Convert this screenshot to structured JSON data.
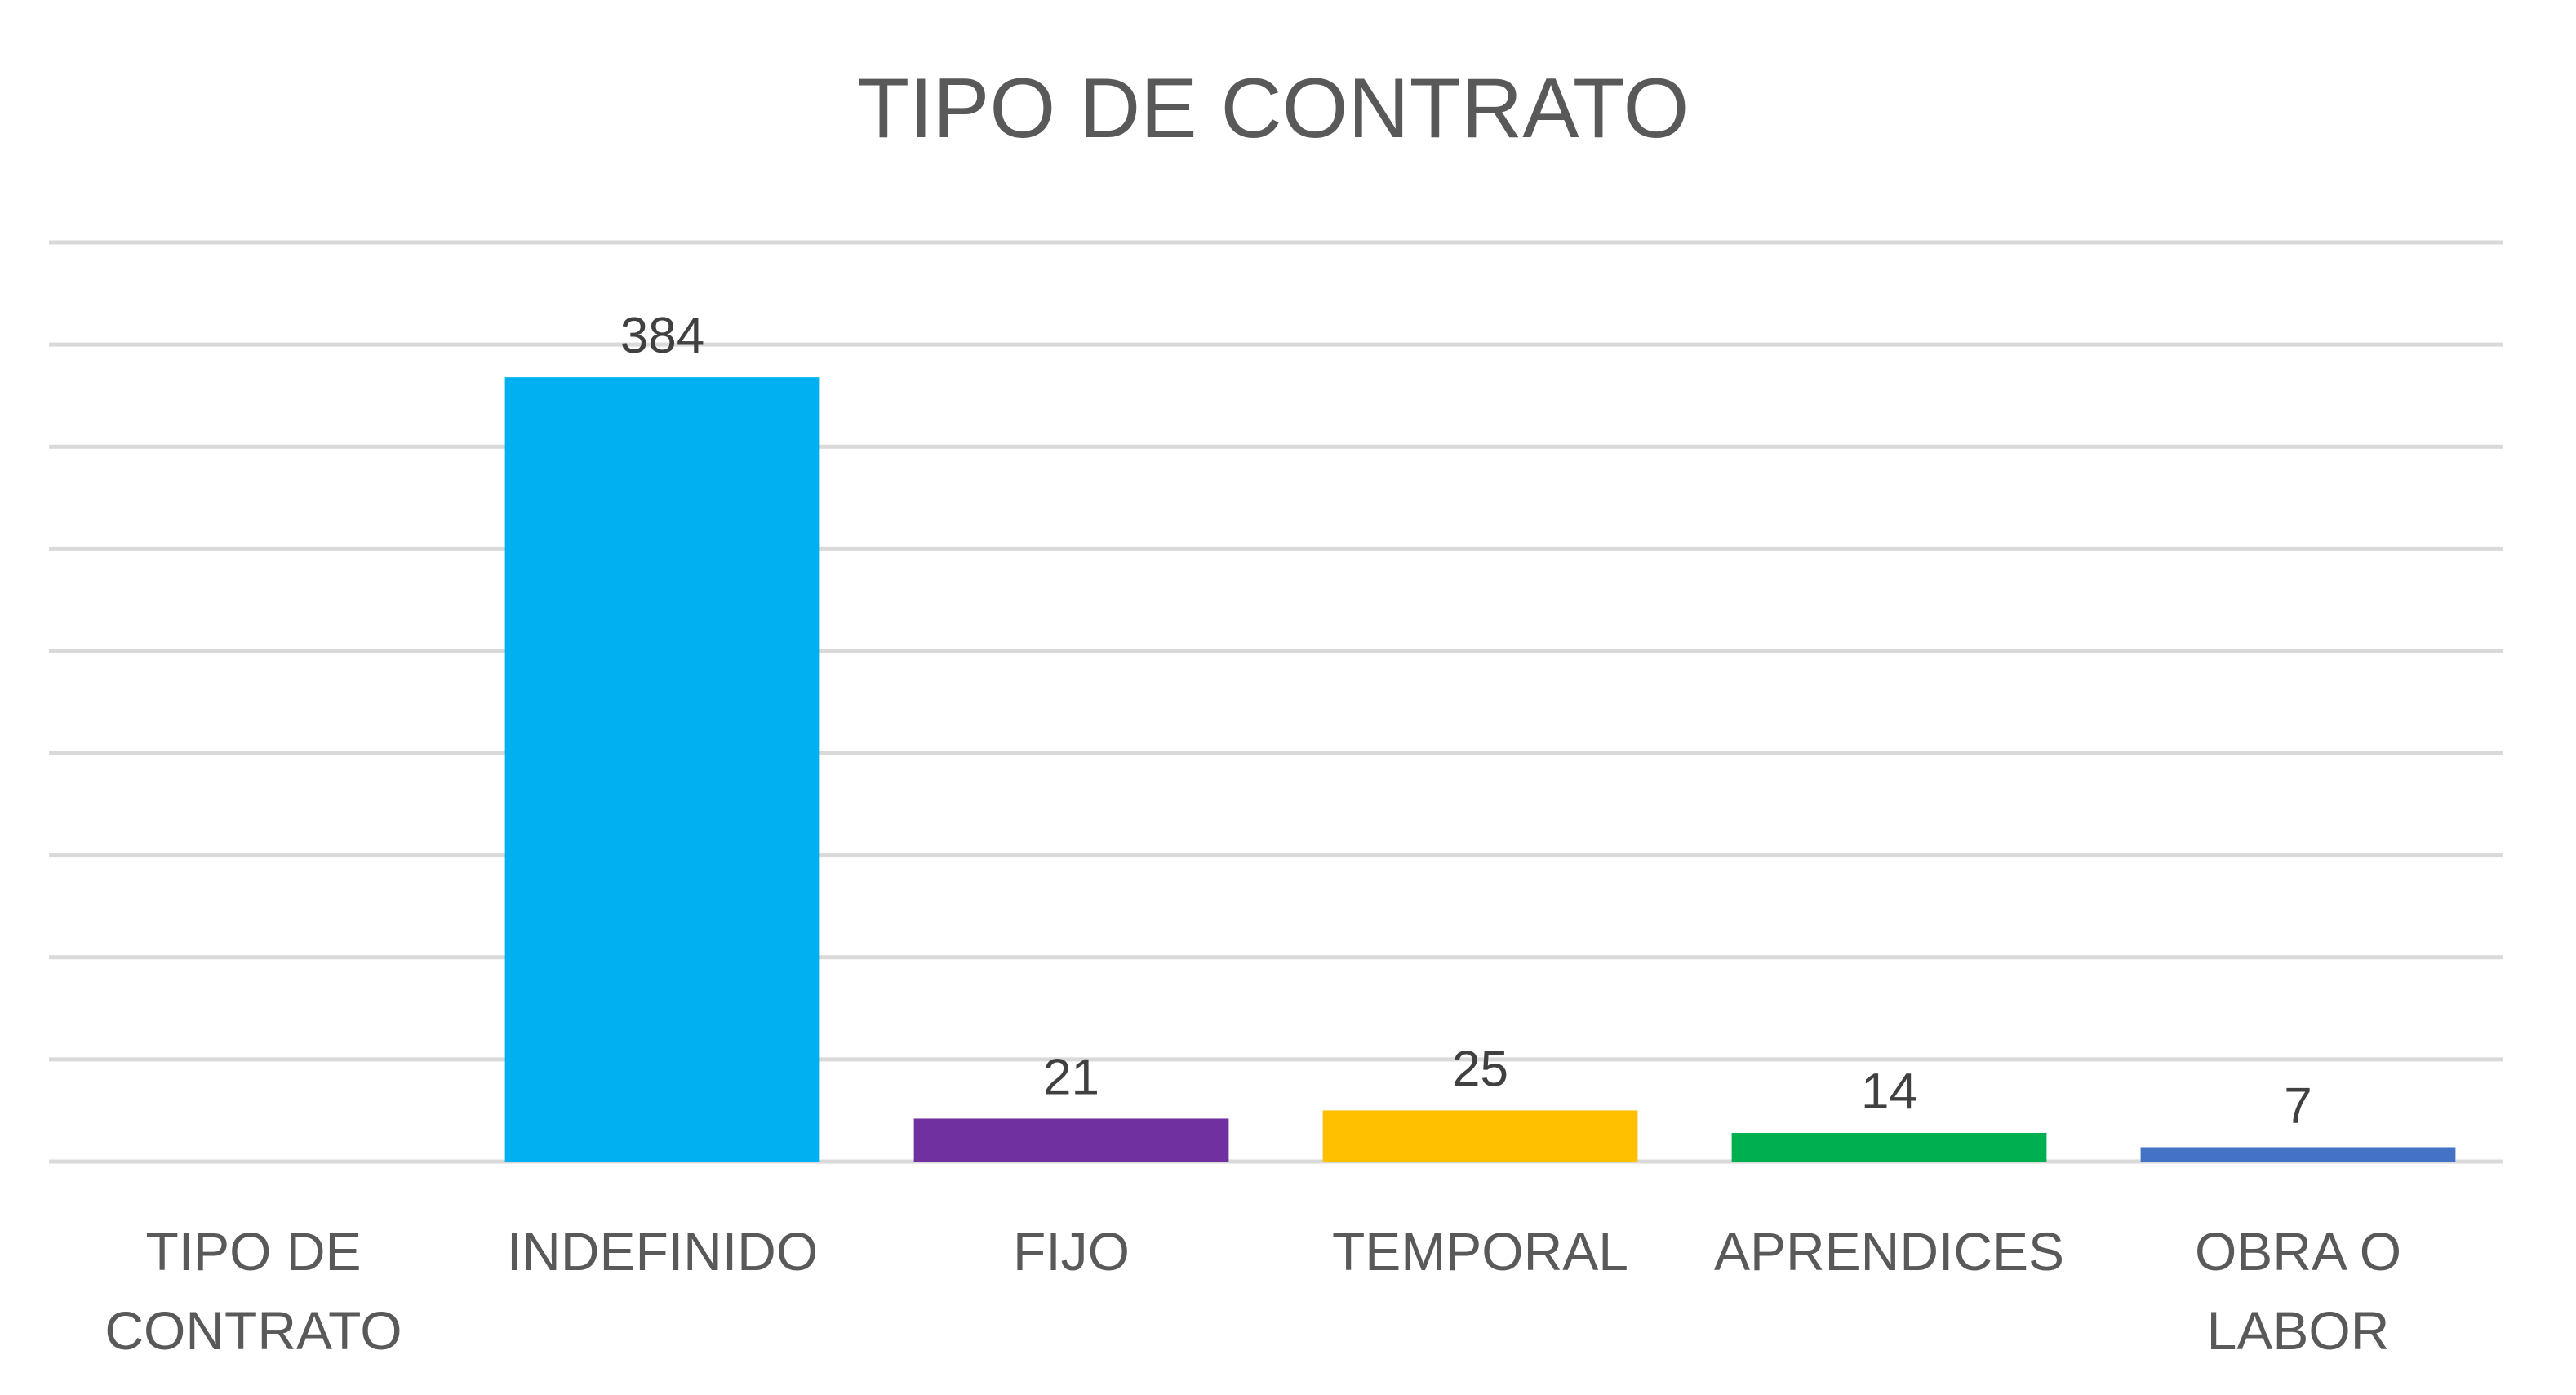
{
  "chart_data": {
    "type": "bar",
    "title": "TIPO DE CONTRATO",
    "categories": [
      [
        "TIPO DE",
        "CONTRATO"
      ],
      [
        "INDEFINIDO"
      ],
      [
        "FIJO"
      ],
      [
        "TEMPORAL"
      ],
      [
        "APRENDICES"
      ],
      [
        "OBRA O",
        "LABOR"
      ]
    ],
    "values": [
      null,
      384,
      21,
      25,
      14,
      7
    ],
    "data_labels": [
      "",
      "384",
      "21",
      "25",
      "14",
      "7"
    ],
    "colors": [
      "#ffffff",
      "#00b0f0",
      "#7030a0",
      "#ffc000",
      "#00b050",
      "#4472c4"
    ],
    "ylim": [
      0,
      450
    ],
    "gridline_step": 50,
    "y_axis_labels_shown": false,
    "grid": true,
    "legend": "none"
  }
}
